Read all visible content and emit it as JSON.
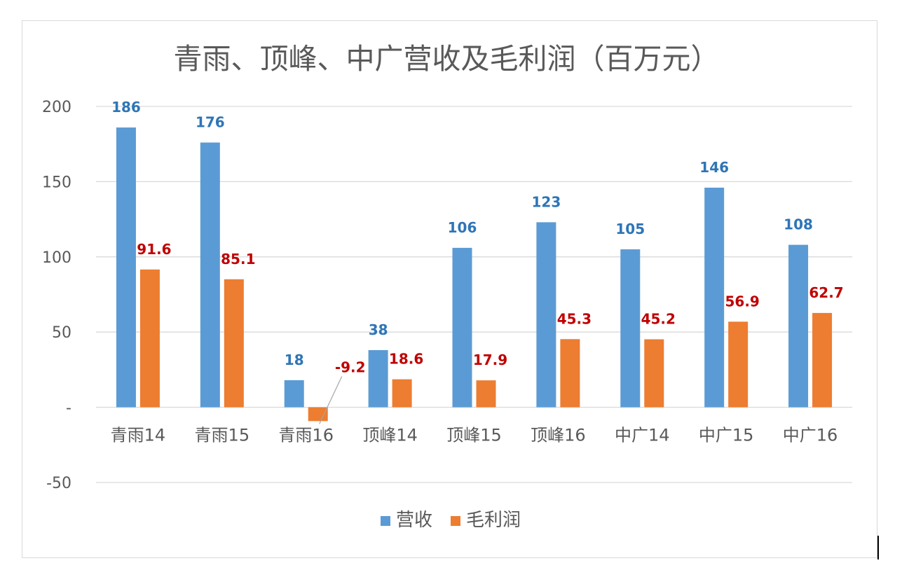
{
  "chart_data": {
    "type": "bar",
    "title": "青雨、顶峰、中广营收及毛利润（百万元）",
    "categories": [
      "青雨14",
      "青雨15",
      "青雨16",
      "顶峰14",
      "顶峰15",
      "顶峰16",
      "中广14",
      "中广15",
      "中广16"
    ],
    "series": [
      {
        "name": "营收",
        "color": "#5b9bd5",
        "label_color": "#2e75b6",
        "values": [
          186,
          176,
          18,
          38,
          106,
          123,
          105,
          146,
          108
        ],
        "labels": [
          "186",
          "176",
          "18",
          "38",
          "106",
          "123",
          "105",
          "146",
          "108"
        ]
      },
      {
        "name": "毛利润",
        "color": "#ed7d31",
        "label_color": "#c00000",
        "values": [
          91.6,
          85.1,
          -9.2,
          18.6,
          17.9,
          45.3,
          45.2,
          56.9,
          62.7
        ],
        "labels": [
          "91.6",
          "85.1",
          "-9.2",
          "18.6",
          "17.9",
          "45.3",
          "45.2",
          "56.9",
          "62.7"
        ]
      }
    ],
    "ylim": [
      -50,
      200
    ],
    "yticks": [
      200,
      150,
      100,
      50,
      0,
      -50
    ],
    "ytick_labels": [
      "200",
      "150",
      "100",
      "50",
      "-",
      "-50"
    ],
    "xlabel": "",
    "ylabel": "",
    "grid": true,
    "legend": "bottom-center"
  }
}
